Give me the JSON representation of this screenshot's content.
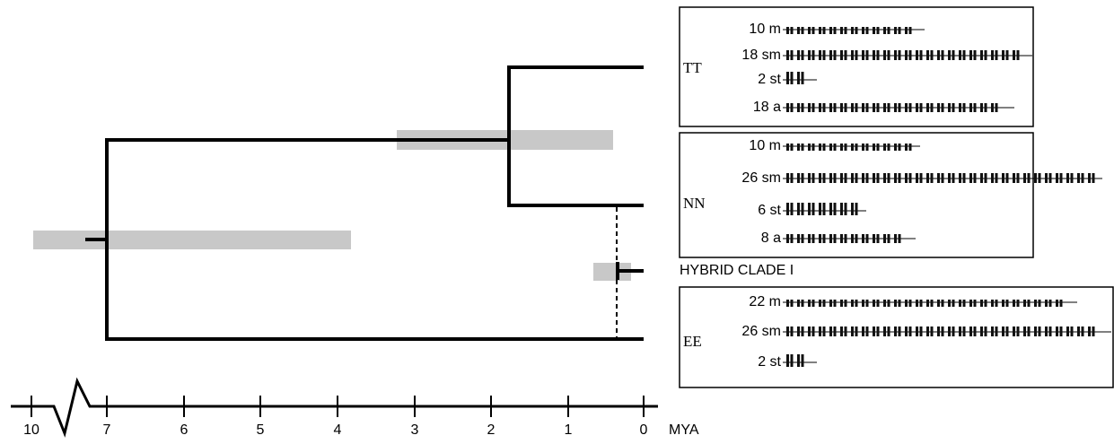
{
  "karyotypes": [
    {
      "genome": "TT",
      "rows": [
        "10 m",
        "18 sm",
        "2 st",
        "18 a"
      ]
    },
    {
      "genome": "NN",
      "rows": [
        "10 m",
        "26 sm",
        "6 st",
        "8 a"
      ]
    },
    {
      "genome": "EE",
      "rows": [
        "22 m",
        "26 sm",
        "2 st"
      ]
    }
  ],
  "hybrid_label": "HYBRID CLADE I",
  "axis": {
    "ticks": [
      "10",
      "7",
      "6",
      "5",
      "4",
      "3",
      "2",
      "1",
      "0"
    ],
    "unit": "MYA"
  }
}
